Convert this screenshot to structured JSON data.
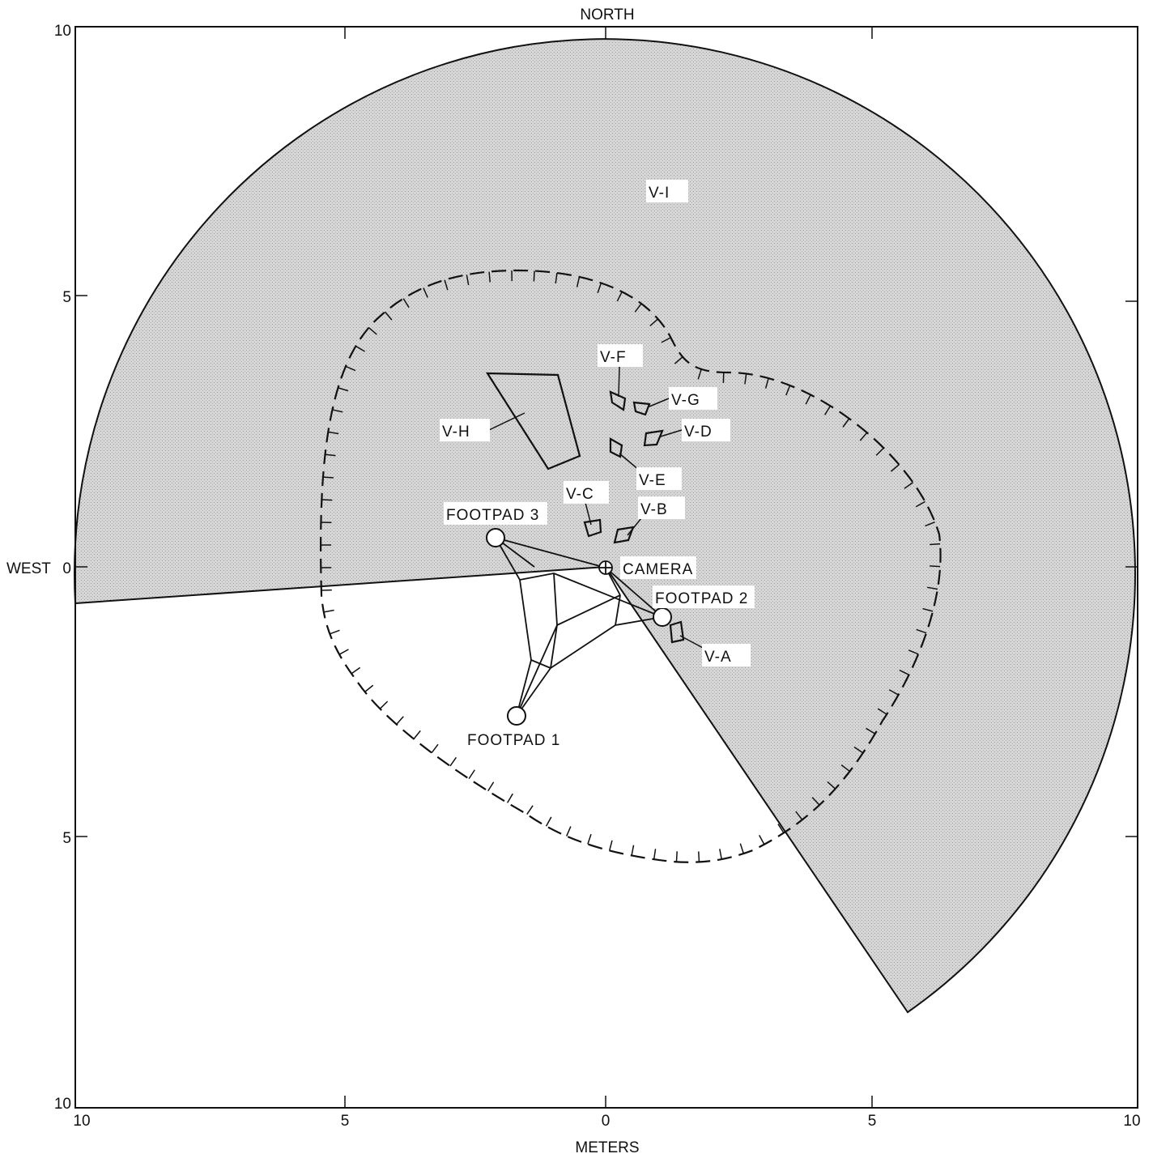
{
  "compass": {
    "north": "NORTH",
    "west": "WEST"
  },
  "axes": {
    "xlabel": "METERS",
    "x_ticks": [
      "10",
      "5",
      "0",
      "5",
      "10"
    ],
    "y_ticks_left": [
      "10",
      "5",
      "0",
      "5",
      "10"
    ]
  },
  "labels": {
    "camera": "CAMERA",
    "footpad1": "FOOTPAD 1",
    "footpad2": "FOOTPAD 2",
    "footpad3": "FOOTPAD 3",
    "v_a": "V-A",
    "v_b": "V-B",
    "v_c": "V-C",
    "v_d": "V-D",
    "v_e": "V-E",
    "v_f": "V-F",
    "v_g": "V-G",
    "v_h": "V-H",
    "v_i": "V-I"
  },
  "colors": {
    "shade": "#d2d2d2",
    "line": "#111111",
    "background": "#ffffff"
  }
}
